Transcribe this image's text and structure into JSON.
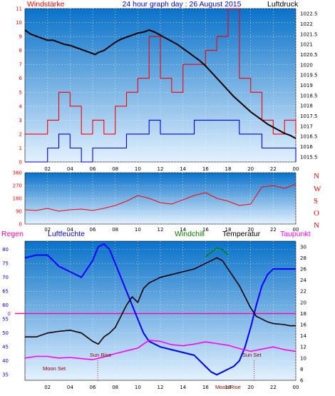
{
  "panel1": {
    "left_label": "Windstärke",
    "title": "24 hour graph day : 26 August 2015",
    "right_label": "Luftdruck",
    "wind_ticks": [
      "0",
      "1",
      "2",
      "3",
      "4",
      "5",
      "6",
      "7",
      "8",
      "9",
      "10",
      "11"
    ],
    "pressure_ticks": [
      "1015.5",
      "1016",
      "1016.5",
      "1017",
      "1017.5",
      "1018",
      "1018.5",
      "1019",
      "1019.5",
      "1020",
      "1020.5",
      "1021",
      "1021.5",
      "1022",
      "1022.5"
    ],
    "x_ticks": [
      "02",
      "04",
      "06",
      "08",
      "10",
      "12",
      "14",
      "16",
      "18",
      "20",
      "22",
      "00"
    ]
  },
  "panel2": {
    "y_ticks": [
      "0",
      "90",
      "180",
      "270",
      "360"
    ],
    "compass": [
      "N",
      "W",
      "S",
      "O",
      "N"
    ],
    "x_ticks": [
      "02",
      "04",
      "06",
      "08",
      "10",
      "12",
      "14",
      "16",
      "18",
      "20",
      "22",
      "00"
    ]
  },
  "panel3": {
    "legend": {
      "regen": "Regen",
      "luftfeuchte": "Luftfeuchte",
      "windchill": "Windchill",
      "temperatur": "Temperatur",
      "taupunkt": "Taupunkt"
    },
    "humidity_ticks": [
      "35",
      "40",
      "45",
      "50",
      "55",
      "60",
      "65",
      "70",
      "75",
      "80"
    ],
    "rain_tick": "0",
    "temp_ticks": [
      "6",
      "8",
      "10",
      "12",
      "14",
      "16",
      "18",
      "20",
      "22",
      "24",
      "26",
      "28",
      "30"
    ],
    "x_ticks": [
      "02",
      "04",
      "06",
      "08",
      "10",
      "12",
      "14",
      "16",
      "18",
      "20",
      "22",
      "00"
    ],
    "annotations": {
      "sun_rise": "Sun Rise",
      "sun_set": "Sun Set",
      "moon_set": "Moon Set",
      "moon_rise": "Moon Rise"
    }
  },
  "colors": {
    "background": "#ffffff",
    "panel_top": "#0a72c9",
    "panel_bottom": "#e3f1ff",
    "wind_gust": "#ff0000",
    "wind_avg": "#0000ff",
    "pressure": "#000000",
    "wind_direction": "#ff0000",
    "humidity": "#0000ff",
    "temperature": "#000000",
    "windchill": "#008000",
    "dewpoint": "#ff00ff",
    "rain": "#ff00aa",
    "title": "#0000ff",
    "left_label": "#ff0000"
  },
  "chart_data": [
    {
      "type": "line",
      "title": "24 hour graph day : 26 August 2015",
      "ylabel": "Windstärke",
      "y2label": "Luftdruck",
      "xlim": [
        0,
        24
      ],
      "ylim": [
        0,
        11
      ],
      "y2lim": [
        1015.25,
        1022.75
      ],
      "grid": true,
      "series": [
        {
          "name": "Luftdruck",
          "axis": "right",
          "x": [
            0,
            0.5,
            1,
            1.5,
            2,
            2.5,
            3,
            3.5,
            4,
            4.5,
            5,
            5.5,
            6,
            6.2,
            6.5,
            7,
            7.5,
            8,
            8.5,
            9,
            9.5,
            10,
            10.5,
            11,
            11.5,
            12,
            12.5,
            13,
            13.5,
            14,
            14.5,
            15,
            15.5,
            16,
            16.5,
            17,
            17.5,
            18,
            18.5,
            19,
            19.5,
            20,
            20.5,
            21,
            21.5,
            22,
            22.5,
            23,
            23.5,
            24
          ],
          "values": [
            1021.7,
            1021.5,
            1021.4,
            1021.3,
            1021.2,
            1021.2,
            1021.1,
            1021.0,
            1020.95,
            1020.85,
            1020.75,
            1020.65,
            1020.55,
            1020.5,
            1020.6,
            1020.7,
            1020.9,
            1021.1,
            1021.25,
            1021.35,
            1021.45,
            1021.55,
            1021.6,
            1021.7,
            1021.6,
            1021.45,
            1021.3,
            1021.15,
            1021.0,
            1020.8,
            1020.6,
            1020.4,
            1020.2,
            1019.95,
            1019.65,
            1019.35,
            1019.05,
            1018.75,
            1018.45,
            1018.2,
            1017.95,
            1017.7,
            1017.5,
            1017.3,
            1017.1,
            1016.95,
            1016.8,
            1016.65,
            1016.55,
            1016.4
          ]
        },
        {
          "name": "Windstärke (Böen)",
          "axis": "left",
          "x": [
            0,
            1,
            2,
            3,
            4,
            5,
            6,
            7,
            8,
            9,
            10,
            11,
            12,
            13,
            14,
            15,
            16,
            17,
            18,
            19,
            20,
            21,
            22,
            23,
            24
          ],
          "values": [
            2,
            2,
            3,
            5,
            4,
            2,
            3,
            2,
            4,
            5,
            6,
            9,
            6,
            5,
            7,
            7,
            8,
            9,
            11,
            6,
            5,
            3,
            2,
            3,
            2
          ]
        },
        {
          "name": "Windstärke (Mittel)",
          "axis": "left",
          "x": [
            0,
            1,
            2,
            3,
            4,
            5,
            6,
            7,
            8,
            9,
            10,
            11,
            12,
            13,
            14,
            15,
            16,
            17,
            18,
            19,
            20,
            21,
            22,
            23,
            24
          ],
          "values": [
            0,
            0,
            1,
            2,
            1,
            0,
            1,
            1,
            1,
            2,
            2,
            3,
            2,
            2,
            2,
            3,
            3,
            3,
            3,
            2,
            2,
            1,
            1,
            1,
            0
          ]
        }
      ]
    },
    {
      "type": "line",
      "xlim": [
        0,
        24
      ],
      "ylim": [
        0,
        360
      ],
      "grid": true,
      "series": [
        {
          "name": "Windrichtung",
          "x": [
            0,
            1,
            2,
            3,
            4,
            5,
            6,
            7,
            8,
            9,
            10,
            11,
            12,
            13,
            14,
            15,
            16,
            17,
            18,
            19,
            20,
            21,
            22,
            23,
            24
          ],
          "values": [
            100,
            95,
            110,
            90,
            100,
            105,
            95,
            110,
            130,
            160,
            200,
            180,
            150,
            140,
            170,
            200,
            220,
            180,
            160,
            130,
            140,
            260,
            270,
            250,
            280
          ]
        }
      ]
    },
    {
      "type": "line",
      "xlim": [
        0,
        24
      ],
      "ylim": [
        33,
        83
      ],
      "y2lim": [
        6,
        31
      ],
      "grid": true,
      "series": [
        {
          "name": "Luftfeuchte",
          "axis": "left",
          "x": [
            0,
            1,
            2,
            3,
            4,
            5,
            6,
            6.5,
            7,
            7.5,
            8,
            8.5,
            9,
            9.5,
            10,
            10.5,
            11,
            12,
            13,
            14,
            15,
            16,
            16.5,
            17,
            17.5,
            18,
            18.5,
            19,
            19.5,
            20,
            20.5,
            21,
            21.5,
            22,
            23,
            23.5,
            24
          ],
          "values": [
            77,
            78,
            78,
            74,
            72,
            70,
            76,
            81,
            82,
            80,
            75,
            70,
            65,
            60,
            55,
            50,
            47,
            45,
            44,
            43,
            42,
            38,
            36,
            35,
            36,
            37,
            38,
            40,
            45,
            52,
            60,
            67,
            71,
            73,
            73,
            73,
            73
          ]
        },
        {
          "name": "Temperatur",
          "axis": "right",
          "x": [
            0,
            1,
            2,
            3,
            4,
            5,
            6,
            6.5,
            7,
            7.5,
            8,
            8.5,
            9,
            9.5,
            10,
            10.5,
            11,
            12,
            13,
            14,
            15,
            16,
            16.5,
            17,
            17.5,
            18,
            18.5,
            19,
            19.5,
            20,
            20.5,
            21,
            21.5,
            22,
            23,
            23.5,
            24
          ],
          "values": [
            13.8,
            13.8,
            14.5,
            14.8,
            15.0,
            14.5,
            13.0,
            12.5,
            13.8,
            14.5,
            15.5,
            17.5,
            19.5,
            21.0,
            20.0,
            22.5,
            23.5,
            24.5,
            25.0,
            25.5,
            26.0,
            27.0,
            27.5,
            28.0,
            27.5,
            26.0,
            24.5,
            23.0,
            21.0,
            19.0,
            17.5,
            17.0,
            16.5,
            16.2,
            16.0,
            15.8,
            15.8
          ]
        },
        {
          "name": "Windchill",
          "axis": "right",
          "x": [
            16,
            16.5,
            17,
            17.5,
            18
          ],
          "values": [
            28.2,
            29.0,
            29.8,
            29.5,
            28.5
          ]
        },
        {
          "name": "Taupunkt",
          "axis": "right",
          "x": [
            0,
            1,
            2,
            3,
            4,
            5,
            6,
            7,
            8,
            9,
            10,
            11,
            12,
            13,
            14,
            15,
            16,
            17,
            18,
            19,
            20,
            21,
            22,
            23,
            24
          ],
          "values": [
            10.0,
            10.3,
            10.3,
            10.0,
            10.1,
            9.9,
            9.7,
            10.2,
            10.8,
            11.3,
            11.8,
            13.2,
            13.0,
            12.4,
            12.2,
            12.5,
            12.9,
            12.6,
            12.3,
            11.7,
            11.2,
            11.6,
            12.0,
            11.5,
            11.2
          ]
        },
        {
          "name": "Regen",
          "axis": "rain",
          "x": [
            0,
            24
          ],
          "values": [
            0,
            0
          ]
        }
      ]
    }
  ]
}
